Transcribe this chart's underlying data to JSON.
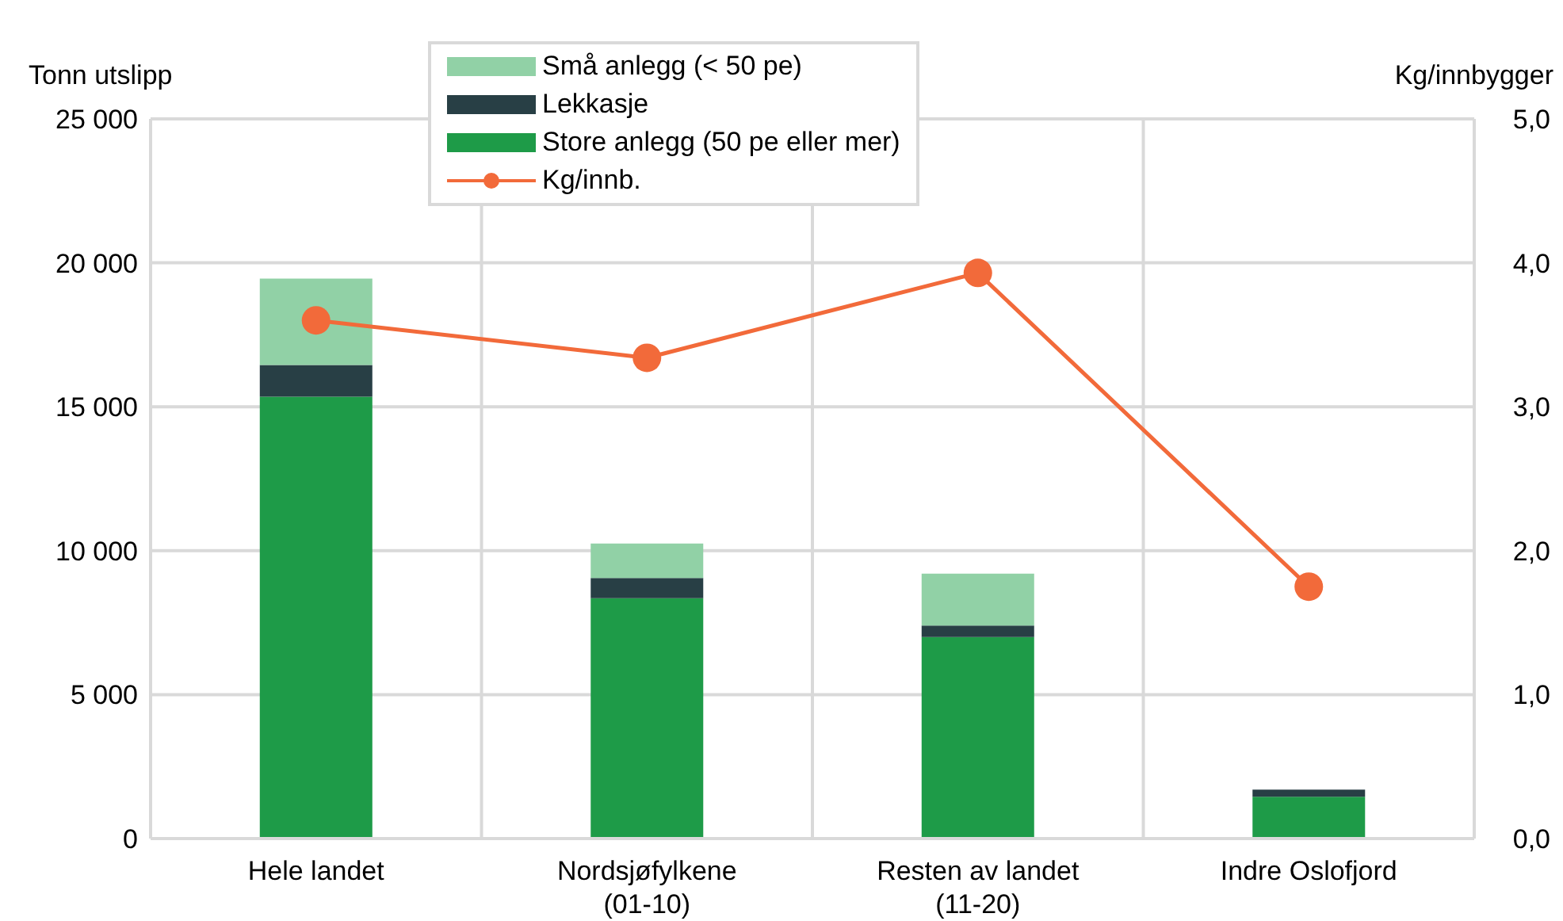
{
  "chart_data": {
    "type": "bar",
    "stacked": true,
    "ylabel": "Tonn utslipp",
    "y2label": "Kg/innbygger",
    "categories": [
      "Hele landet",
      "Nordsjøfylkene\n(01-10)",
      "Resten av landet\n(11-20)",
      "Indre Oslofjord"
    ],
    "series": [
      {
        "name": "Store anlegg (50 pe eller mer)",
        "color": "#1e9b48",
        "values": [
          15350,
          8350,
          7000,
          1450
        ]
      },
      {
        "name": "Lekkasje",
        "color": "#283f45",
        "values": [
          1100,
          700,
          400,
          250
        ]
      },
      {
        "name": "Små anlegg  (< 50 pe)",
        "color": "#91d1a6",
        "values": [
          3000,
          1200,
          1800,
          0
        ]
      },
      {
        "name": "Kg/innb.",
        "type": "line",
        "axis": "y2",
        "color": "#f26a3a",
        "marker": "circle",
        "values": [
          3.6,
          3.34,
          3.93,
          1.75
        ]
      }
    ],
    "ylim": [
      0,
      25000
    ],
    "yticks": [
      0,
      {
        "value": 5000,
        "label": "5 000"
      },
      {
        "value": 10000,
        "label": "10 000"
      },
      {
        "value": 15000,
        "label": "15 000"
      },
      {
        "value": 20000,
        "label": "20 000"
      },
      {
        "value": 25000,
        "label": "25 000"
      }
    ],
    "y2lim": [
      0,
      5
    ],
    "y2ticks": [
      {
        "value": 0,
        "label": "0,0"
      },
      {
        "value": 1,
        "label": "1,0"
      },
      {
        "value": 2,
        "label": "2,0"
      },
      {
        "value": 3,
        "label": "3,0"
      },
      {
        "value": 4,
        "label": "4,0"
      },
      {
        "value": 5,
        "label": "5,0"
      }
    ],
    "grid": true,
    "legend": "top"
  }
}
